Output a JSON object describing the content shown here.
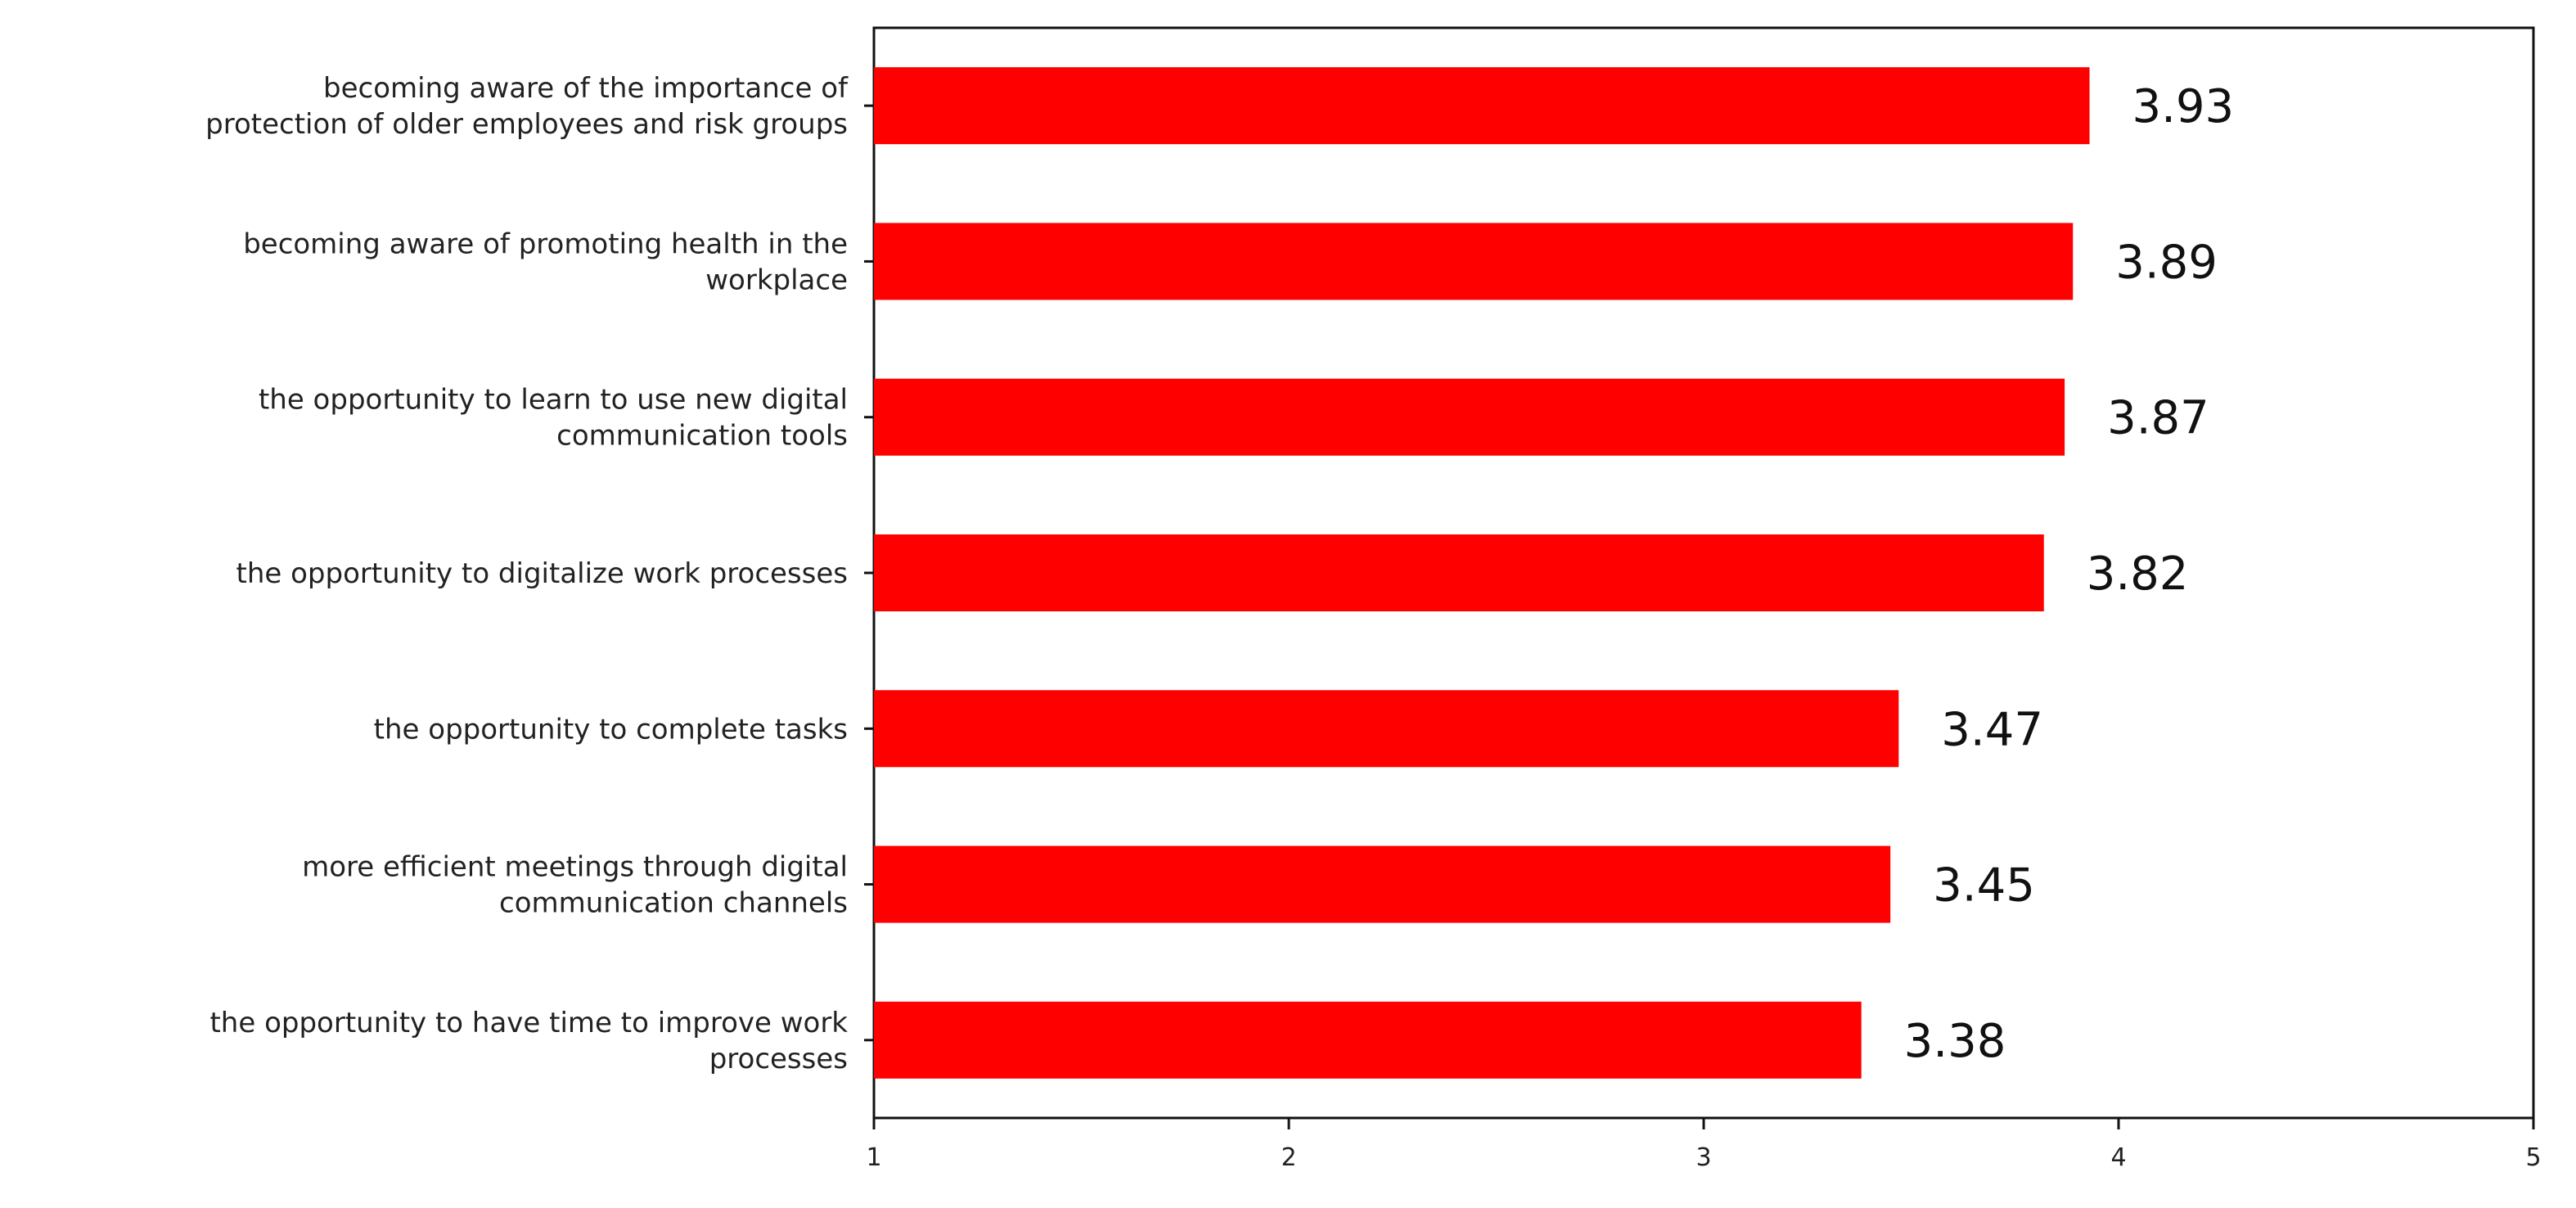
{
  "chart_data": {
    "type": "bar",
    "orientation": "horizontal",
    "categories": [
      [
        "becoming aware of the importance of",
        "protection of older employees and risk groups"
      ],
      [
        "becoming aware of promoting health in the",
        "workplace"
      ],
      [
        "the opportunity to learn to use new digital",
        "communication tools"
      ],
      [
        "the opportunity to digitalize work processes"
      ],
      [
        "the opportunity to complete tasks"
      ],
      [
        "more efficient meetings through digital",
        "communication channels"
      ],
      [
        "the opportunity to have time to improve work",
        "processes"
      ]
    ],
    "values": [
      3.93,
      3.89,
      3.87,
      3.82,
      3.47,
      3.45,
      3.38
    ],
    "data_labels": [
      "3.93",
      "3.89",
      "3.87",
      "3.82",
      "3.47",
      "3.45",
      "3.38"
    ],
    "xlim": [
      1,
      5
    ],
    "x_ticks": [
      1,
      2,
      3,
      4,
      5
    ],
    "x_tick_labels": [
      "1",
      "2",
      "3",
      "4",
      "5"
    ],
    "title": "",
    "xlabel": "",
    "ylabel": "",
    "grid": false,
    "legend": "none",
    "bar_color": "#ff0000"
  }
}
